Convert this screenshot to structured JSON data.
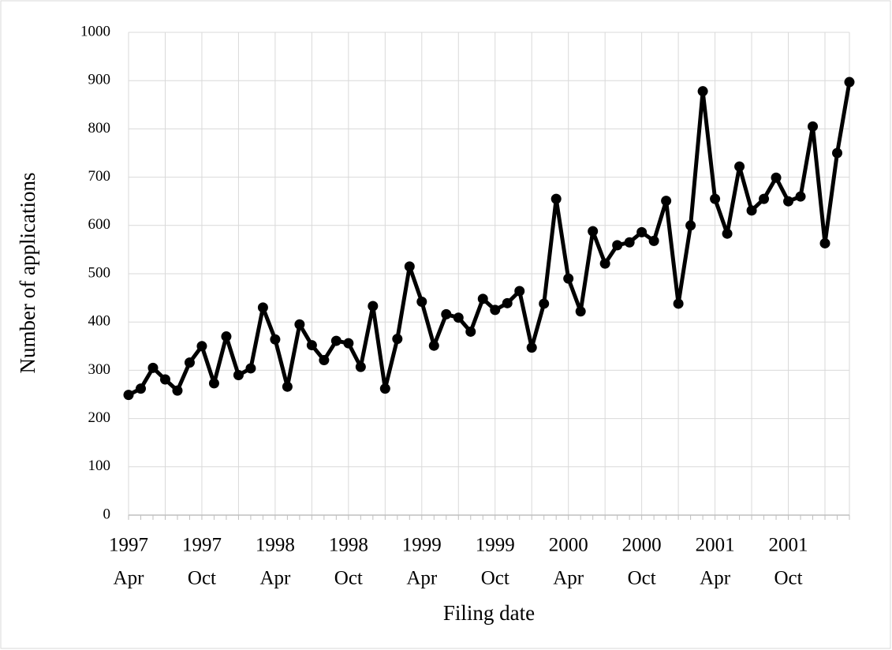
{
  "chart_data": {
    "type": "line",
    "x_label": "Filing date",
    "y_label": "Number of applications",
    "categories": [
      [
        "1997",
        "Apr"
      ],
      null,
      null,
      null,
      null,
      null,
      [
        "1997",
        "Oct"
      ],
      null,
      null,
      null,
      null,
      null,
      [
        "1998",
        "Apr"
      ],
      null,
      null,
      null,
      null,
      null,
      [
        "1998",
        "Oct"
      ],
      null,
      null,
      null,
      null,
      null,
      [
        "1999",
        "Apr"
      ],
      null,
      null,
      null,
      null,
      null,
      [
        "1999",
        "Oct"
      ],
      null,
      null,
      null,
      null,
      null,
      [
        "2000",
        "Apr"
      ],
      null,
      null,
      null,
      null,
      null,
      [
        "2000",
        "Oct"
      ],
      null,
      null,
      null,
      null,
      null,
      [
        "2001",
        "Apr"
      ],
      null,
      null,
      null,
      null,
      null,
      [
        "2001",
        "Oct"
      ],
      null,
      null,
      null,
      null,
      null
    ],
    "series": [
      {
        "color": "#000000",
        "values": [
          249,
          262,
          305,
          281,
          258,
          316,
          350,
          273,
          370,
          290,
          304,
          430,
          364,
          266,
          395,
          352,
          321,
          361,
          356,
          307,
          433,
          262,
          365,
          515,
          442,
          351,
          416,
          409,
          380,
          448,
          425,
          439,
          464,
          347,
          438,
          655,
          490,
          422,
          588,
          521,
          559,
          565,
          586,
          568,
          651,
          438,
          600,
          878,
          655,
          583,
          722,
          631,
          655,
          699,
          650,
          660,
          805,
          563,
          750,
          897
        ]
      }
    ],
    "ylim": [
      0,
      1000
    ],
    "yticks": [
      0,
      100,
      200,
      300,
      400,
      500,
      600,
      700,
      800,
      900,
      1000
    ],
    "grid": true
  }
}
